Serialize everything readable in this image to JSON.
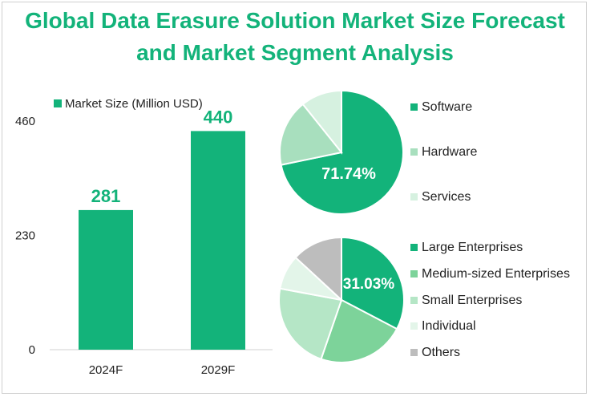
{
  "title_line1": "Global Data Erasure Solution Market Size Forecast",
  "title_line2": "and Market Segment Analysis",
  "chart_data": [
    {
      "type": "bar",
      "categories": [
        "2024F",
        "2029F"
      ],
      "series": [
        {
          "name": "Market Size (Million USD)",
          "values": [
            281,
            440
          ]
        }
      ],
      "data_labels": [
        "281",
        "440"
      ],
      "yticks": [
        "0",
        "230",
        "460"
      ],
      "ylim": [
        0,
        460
      ],
      "color": "#13b37a",
      "grid": false,
      "legend_position": "top-left"
    },
    {
      "type": "pie",
      "labels": [
        "Software",
        "Hardware",
        "Services"
      ],
      "values": [
        71.74,
        17.5,
        10.76
      ],
      "shown_label": "71.74%",
      "colors": [
        "#13b37a",
        "#a8dfbe",
        "#d6f1e0"
      ],
      "legend_position": "right"
    },
    {
      "type": "pie",
      "labels": [
        "Large Enterprises",
        "Medium-sized Enterprises",
        "Small Enterprises",
        "Individual",
        "Others"
      ],
      "values": [
        31.03,
        21.5,
        21.5,
        8.5,
        12.47
      ],
      "shown_label": "31.03%",
      "colors": [
        "#13b37a",
        "#7dd39a",
        "#b5e6c6",
        "#e3f5e9",
        "#bdbdbd"
      ],
      "legend_position": "right"
    }
  ]
}
